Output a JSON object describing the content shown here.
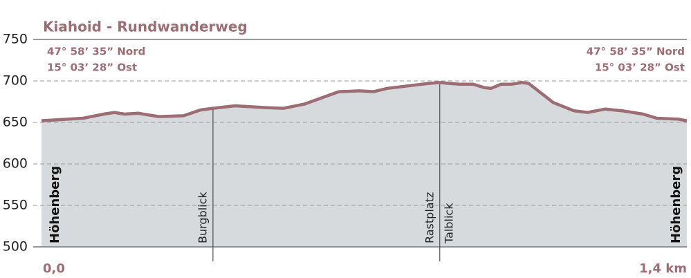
{
  "chart_data": {
    "type": "area",
    "title": "Kiahoid - Rundwanderweg",
    "start_coords": [
      "47° 58’ 35” Nord",
      "15° 03’ 28” Ost"
    ],
    "end_coords": [
      "47° 58’ 35” Nord",
      "15° 03’ 28” Ost"
    ],
    "start_label": "Höhenberg",
    "end_label": "Höhenberg",
    "x": [
      0,
      0.09,
      0.135,
      0.158,
      0.18,
      0.21,
      0.255,
      0.308,
      0.345,
      0.372,
      0.42,
      0.48,
      0.525,
      0.57,
      0.615,
      0.645,
      0.69,
      0.72,
      0.75,
      0.795,
      0.84,
      0.864,
      0.885,
      0.907,
      0.937,
      0.96,
      0.975,
      0.997,
      1.02,
      1.042,
      1.057,
      1.08,
      1.11,
      1.155,
      1.185,
      1.222,
      1.26,
      1.305,
      1.335,
      1.38,
      1.4
    ],
    "values": [
      652,
      655,
      660,
      662,
      660,
      661,
      657,
      658,
      665,
      667,
      670,
      668,
      667,
      672,
      681,
      687,
      688,
      687,
      691,
      694,
      697,
      698,
      697,
      696,
      696,
      692,
      691,
      696,
      696,
      698,
      697,
      687,
      674,
      664,
      662,
      666,
      664,
      660,
      655,
      654,
      652
    ],
    "markers": [
      {
        "x": 0.372,
        "labels": [
          "Burgblick"
        ]
      },
      {
        "x": 0.864,
        "labels": [
          "Rastplatz",
          "Talblick"
        ]
      }
    ],
    "xlim": [
      0,
      1.4
    ],
    "xticks": [
      {
        "value": 0,
        "label": "0,0"
      },
      {
        "value": 1.4,
        "label": "1,4 km"
      }
    ],
    "ylim": [
      500,
      750
    ],
    "yticks": [
      500,
      550,
      600,
      650,
      700,
      750
    ],
    "color": "#9c6d75",
    "fill": "#d6dadd",
    "grid": true
  }
}
